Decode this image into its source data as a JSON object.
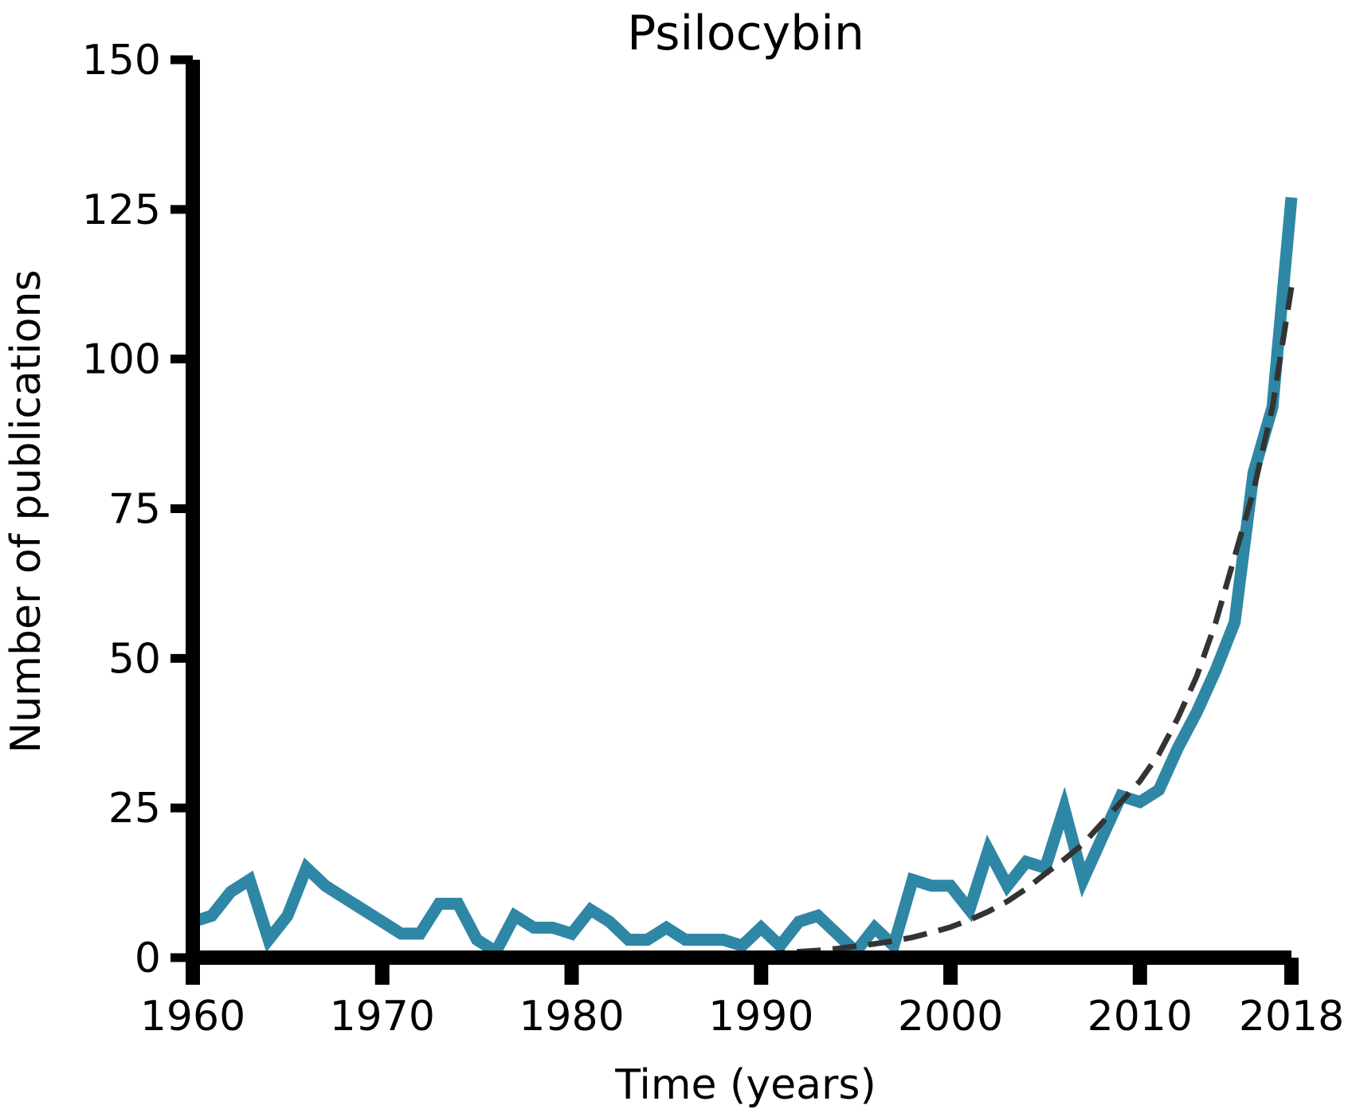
{
  "chart_data": {
    "type": "line",
    "title": "Psilocybin",
    "xlabel": "Time (years)",
    "ylabel": "Number of publications",
    "xlim": [
      1960,
      2018
    ],
    "ylim": [
      0,
      150
    ],
    "xticks": [
      1960,
      1970,
      1980,
      1990,
      2000,
      2010,
      2018
    ],
    "yticks": [
      0,
      25,
      50,
      75,
      100,
      125,
      150
    ],
    "grid": false,
    "colors": {
      "observed": "#2e87a5",
      "fit": "#333333",
      "axes": "#000000"
    },
    "series": [
      {
        "style": "solid",
        "x": [
          1960,
          1961,
          1962,
          1963,
          1964,
          1965,
          1966,
          1967,
          1968,
          1969,
          1970,
          1971,
          1972,
          1973,
          1974,
          1975,
          1976,
          1977,
          1978,
          1979,
          1980,
          1981,
          1982,
          1983,
          1984,
          1985,
          1986,
          1987,
          1988,
          1989,
          1990,
          1991,
          1992,
          1993,
          1994,
          1995,
          1996,
          1997,
          1998,
          1999,
          2000,
          2001,
          2002,
          2003,
          2004,
          2005,
          2006,
          2007,
          2008,
          2009,
          2010,
          2011,
          2012,
          2013,
          2014,
          2015,
          2016,
          2017,
          2018
        ],
        "y": [
          6,
          7,
          11,
          13,
          3,
          7,
          15,
          12,
          10,
          8,
          6,
          4,
          4,
          9,
          9,
          3,
          1,
          7,
          5,
          5,
          4,
          8,
          6,
          3,
          3,
          5,
          3,
          3,
          3,
          2,
          5,
          2,
          6,
          7,
          4,
          1,
          5,
          2,
          13,
          12,
          12,
          8,
          18,
          12,
          16,
          15,
          25,
          13,
          20,
          27,
          26,
          28,
          35,
          41,
          48,
          56,
          81,
          92,
          127
        ]
      },
      {
        "style": "dashed",
        "x": [
          1990,
          1991,
          1992,
          1993,
          1994,
          1995,
          1996,
          1997,
          1998,
          1999,
          2000,
          2001,
          2002,
          2003,
          2004,
          2005,
          2006,
          2007,
          2008,
          2009,
          2010,
          2011,
          2012,
          2013,
          2014,
          2015,
          2016,
          2017,
          2018
        ],
        "y": [
          0.6,
          0.8,
          1.0,
          1.2,
          1.5,
          1.9,
          2.3,
          2.8,
          3.4,
          4.2,
          5.1,
          6.3,
          7.7,
          9.4,
          11.5,
          14.0,
          16.4,
          19.0,
          22.5,
          26.0,
          29.5,
          34.0,
          40.0,
          47.0,
          56.0,
          67.0,
          78.0,
          92.0,
          112.0
        ]
      }
    ]
  }
}
